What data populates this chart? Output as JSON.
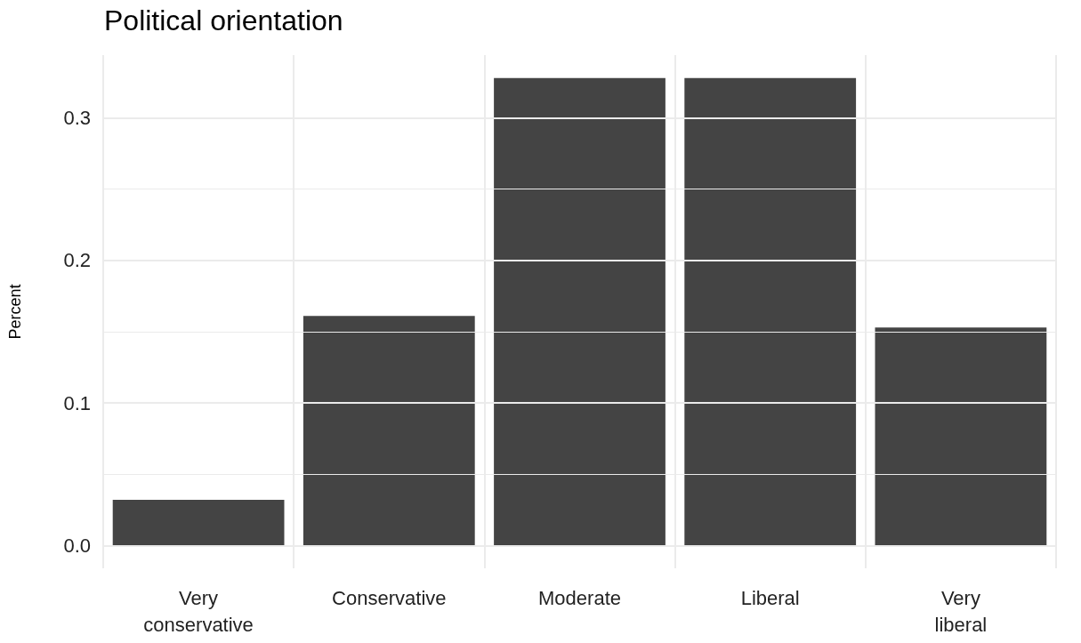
{
  "chart_data": {
    "type": "bar",
    "title": "Political orientation",
    "ylabel": "Percent",
    "categories": [
      "Very\nconservative",
      "Conservative",
      "Moderate",
      "Liberal",
      "Very\nliberal"
    ],
    "values": [
      0.032,
      0.161,
      0.328,
      0.328,
      0.153
    ],
    "color": "#444444",
    "ylim": [
      -0.016,
      0.344
    ],
    "yticks": [
      {
        "value": 0,
        "label": "0.0"
      },
      {
        "value": 0.05,
        "label": null
      },
      {
        "value": 0.1,
        "label": "0.1"
      },
      {
        "value": 0.15,
        "label": null
      },
      {
        "value": 0.2,
        "label": "0.2"
      },
      {
        "value": 0.25,
        "label": null
      },
      {
        "value": 0.3,
        "label": "0.3"
      }
    ],
    "grid": true
  }
}
